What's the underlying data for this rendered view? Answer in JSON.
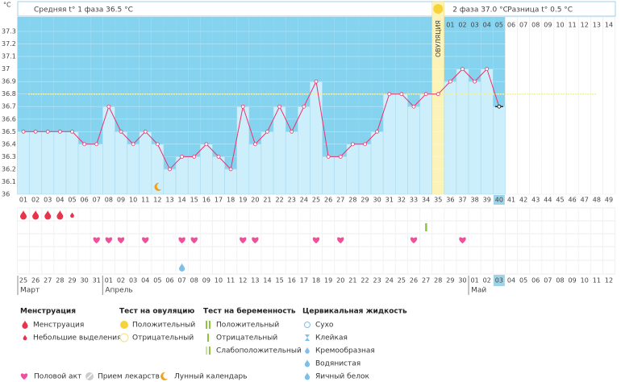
{
  "header": {
    "unit": "°C",
    "phase1": "Средняя t° 1 фаза 36.5 °C",
    "phase2": "2 фаза 37.0 °C",
    "difference": "Разница t° 0.5 °C"
  },
  "chart_data": {
    "type": "line",
    "color": "#e8336e",
    "bar_color": "#cdeefb",
    "background_color": "#86d3f0",
    "categories": [
      "01",
      "02",
      "03",
      "04",
      "05",
      "06",
      "07",
      "08",
      "09",
      "10",
      "11",
      "12",
      "13",
      "14",
      "15",
      "16",
      "17",
      "18",
      "19",
      "20",
      "21",
      "22",
      "23",
      "24",
      "25",
      "26",
      "27",
      "28",
      "29",
      "30",
      "31",
      "32",
      "33",
      "34",
      "35",
      "36",
      "37",
      "38",
      "39",
      "40",
      "41",
      "42",
      "43",
      "44",
      "45",
      "46",
      "47",
      "48",
      "49"
    ],
    "values": [
      36.5,
      36.5,
      36.5,
      36.5,
      36.5,
      36.4,
      36.4,
      36.7,
      36.5,
      36.4,
      36.5,
      36.4,
      36.2,
      36.3,
      36.3,
      36.4,
      36.3,
      36.2,
      36.7,
      36.4,
      36.5,
      36.7,
      36.5,
      36.7,
      36.9,
      36.3,
      36.3,
      36.4,
      36.4,
      36.5,
      36.8,
      36.8,
      36.7,
      36.8,
      36.8,
      36.9,
      37,
      36.9,
      37,
      36.7,
      null,
      null,
      null,
      null,
      null,
      null,
      null,
      null,
      null
    ],
    "ylim": [
      36,
      37.3
    ],
    "yticks": [
      36,
      36.1,
      36.2,
      36.3,
      36.4,
      36.5,
      36.6,
      36.7,
      36.8,
      36.9,
      37,
      37.1,
      37.2,
      37.3
    ],
    "cover_line": 36.8,
    "ovulation_day": 35,
    "ovulation_label": "ОВУЛЯЦИЯ",
    "current_day": 40,
    "post_ovulation_days": [
      "01",
      "02",
      "03",
      "04",
      "05",
      "06",
      "07",
      "08",
      "09",
      "10",
      "11",
      "12",
      "13",
      "14"
    ]
  },
  "calendar": {
    "dates": [
      "25",
      "26",
      "27",
      "28",
      "29",
      "30",
      "31",
      "01",
      "02",
      "03",
      "04",
      "05",
      "06",
      "07",
      "08",
      "09",
      "10",
      "11",
      "12",
      "13",
      "14",
      "15",
      "16",
      "17",
      "18",
      "19",
      "20",
      "21",
      "22",
      "23",
      "24",
      "25",
      "26",
      "27",
      "28",
      "29",
      "30",
      "01",
      "02",
      "03",
      "04",
      "05",
      "06",
      "07",
      "08",
      "09",
      "10",
      "11",
      "12"
    ],
    "weekends": [
      3,
      4,
      10,
      11,
      17,
      18,
      24,
      25,
      31,
      32,
      38,
      44,
      45
    ],
    "weekend_color": "#e8336e",
    "months": [
      "Март",
      "Апрель",
      "Май"
    ]
  },
  "events": {
    "menstruation": [
      1,
      2,
      3,
      4
    ],
    "spotting": [
      5
    ],
    "ovulation_test_positive": [
      34
    ],
    "intercourse": [
      7,
      8,
      9,
      11,
      14,
      15,
      19,
      20,
      25,
      27,
      33,
      37
    ],
    "cervical_watery": [
      14
    ],
    "lunar": [
      12
    ]
  },
  "legend": {
    "menstruation": {
      "title": "Менструация",
      "items": [
        "Менструация",
        "Небольшие выделения"
      ]
    },
    "ovulation_test": {
      "title": "Тест на овуляцию",
      "items": [
        "Положительный",
        "Отрицательный"
      ]
    },
    "pregnancy_test": {
      "title": "Тест на беременность",
      "items": [
        "Положительный",
        "Отрицательный",
        "Слабоположительный"
      ]
    },
    "cervical": {
      "title": "Цервикальная жидкость",
      "items": [
        "Сухо",
        "Клейкая",
        "Кремообразная",
        "Водянистая",
        "Яичный белок"
      ]
    },
    "other": [
      "Половой акт",
      "Прием лекарств",
      "Лунный календарь"
    ]
  }
}
